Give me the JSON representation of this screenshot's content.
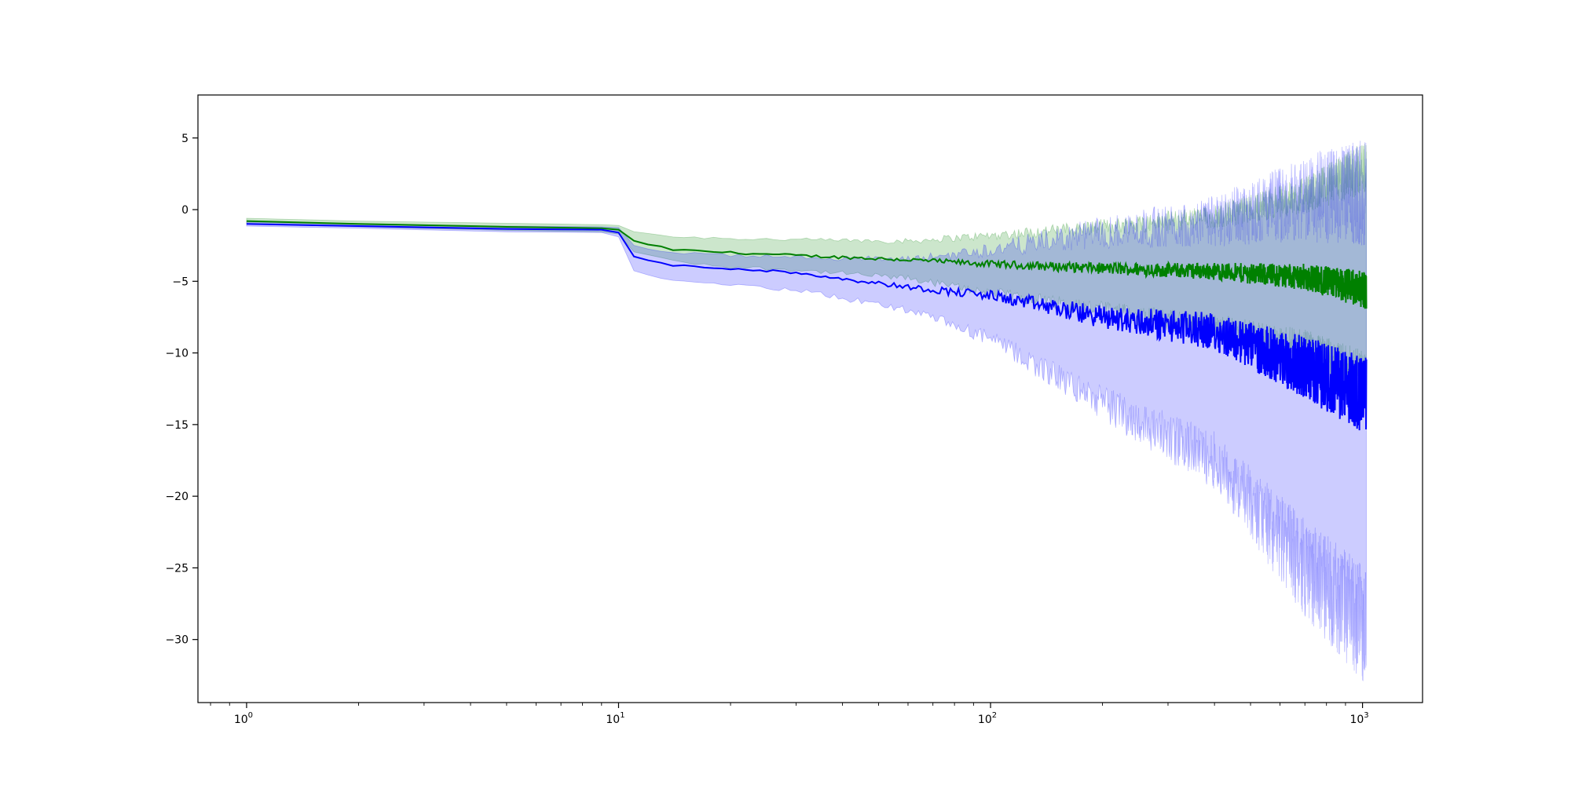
{
  "chart_data": {
    "type": "line",
    "title": "",
    "xlabel": "",
    "ylabel": "",
    "xscale": "log",
    "xlim": [
      0.74,
      1450
    ],
    "ylim": [
      -34.4,
      8.0
    ],
    "grid": false,
    "legend": "none",
    "x_ticks": [
      1,
      10,
      100,
      1000
    ],
    "x_tick_labels": [
      {
        "base": "10",
        "exp": "0"
      },
      {
        "base": "10",
        "exp": "1"
      },
      {
        "base": "10",
        "exp": "2"
      },
      {
        "base": "10",
        "exp": "3"
      }
    ],
    "y_ticks": [
      5,
      0,
      -5,
      -10,
      -15,
      -20,
      -25,
      -30
    ],
    "y_tick_labels": [
      "5",
      "0",
      "−5",
      "−10",
      "−15",
      "−20",
      "−25",
      "−30"
    ],
    "x_range": [
      1,
      1024
    ],
    "series": [
      {
        "color": "#008000",
        "band_color": "#008000",
        "band_opacity": 0.2,
        "mean": [
          [
            1,
            -0.8
          ],
          [
            2,
            -1.0
          ],
          [
            5,
            -1.2
          ],
          [
            9,
            -1.3
          ],
          [
            10,
            -1.4
          ],
          [
            11,
            -2.2
          ],
          [
            14,
            -2.8
          ],
          [
            20,
            -3.0
          ],
          [
            30,
            -3.2
          ],
          [
            60,
            -3.5
          ],
          [
            100,
            -3.8
          ],
          [
            200,
            -4.1
          ],
          [
            400,
            -4.3
          ],
          [
            700,
            -4.7
          ],
          [
            1024,
            -5.6
          ]
        ],
        "upper": [
          [
            1,
            -0.6
          ],
          [
            2,
            -0.8
          ],
          [
            5,
            -0.95
          ],
          [
            9,
            -1.05
          ],
          [
            10,
            -1.1
          ],
          [
            11,
            -1.5
          ],
          [
            14,
            -1.9
          ],
          [
            20,
            -2.0
          ],
          [
            30,
            -2.1
          ],
          [
            60,
            -2.2
          ],
          [
            100,
            -1.8
          ],
          [
            200,
            -1.2
          ],
          [
            400,
            -0.5
          ],
          [
            700,
            1.0
          ],
          [
            1024,
            3.0
          ]
        ],
        "lower": [
          [
            1,
            -1.0
          ],
          [
            2,
            -1.2
          ],
          [
            5,
            -1.45
          ],
          [
            9,
            -1.55
          ],
          [
            10,
            -1.7
          ],
          [
            11,
            -2.9
          ],
          [
            14,
            -3.6
          ],
          [
            20,
            -4.0
          ],
          [
            30,
            -4.2
          ],
          [
            60,
            -4.8
          ],
          [
            100,
            -5.8
          ],
          [
            200,
            -7.0
          ],
          [
            400,
            -8.2
          ],
          [
            700,
            -9.8
          ],
          [
            1024,
            -12.0
          ]
        ]
      },
      {
        "color": "#0000ff",
        "band_color": "#0000ff",
        "band_opacity": 0.2,
        "mean": [
          [
            1,
            -1.0
          ],
          [
            2,
            -1.15
          ],
          [
            5,
            -1.35
          ],
          [
            9,
            -1.4
          ],
          [
            10,
            -1.6
          ],
          [
            11,
            -3.3
          ],
          [
            14,
            -3.9
          ],
          [
            20,
            -4.1
          ],
          [
            30,
            -4.4
          ],
          [
            60,
            -5.4
          ],
          [
            100,
            -6.0
          ],
          [
            200,
            -7.5
          ],
          [
            400,
            -8.5
          ],
          [
            700,
            -11.0
          ],
          [
            1024,
            -13.0
          ]
        ],
        "upper": [
          [
            1,
            -0.85
          ],
          [
            2,
            -1.0
          ],
          [
            5,
            -1.15
          ],
          [
            9,
            -1.2
          ],
          [
            10,
            -1.25
          ],
          [
            11,
            -2.5
          ],
          [
            14,
            -3.0
          ],
          [
            20,
            -3.2
          ],
          [
            30,
            -3.3
          ],
          [
            60,
            -3.5
          ],
          [
            100,
            -2.8
          ],
          [
            200,
            -1.6
          ],
          [
            400,
            -0.8
          ],
          [
            700,
            0.8
          ],
          [
            1024,
            1.2
          ]
        ],
        "lower": [
          [
            1,
            -1.15
          ],
          [
            2,
            -1.3
          ],
          [
            5,
            -1.55
          ],
          [
            9,
            -1.6
          ],
          [
            10,
            -1.9
          ],
          [
            11,
            -4.2
          ],
          [
            14,
            -5.0
          ],
          [
            20,
            -5.3
          ],
          [
            30,
            -5.6
          ],
          [
            60,
            -7.0
          ],
          [
            100,
            -9.0
          ],
          [
            200,
            -13.5
          ],
          [
            400,
            -17.5
          ],
          [
            700,
            -25.0
          ],
          [
            1024,
            -29.0
          ]
        ]
      }
    ]
  }
}
